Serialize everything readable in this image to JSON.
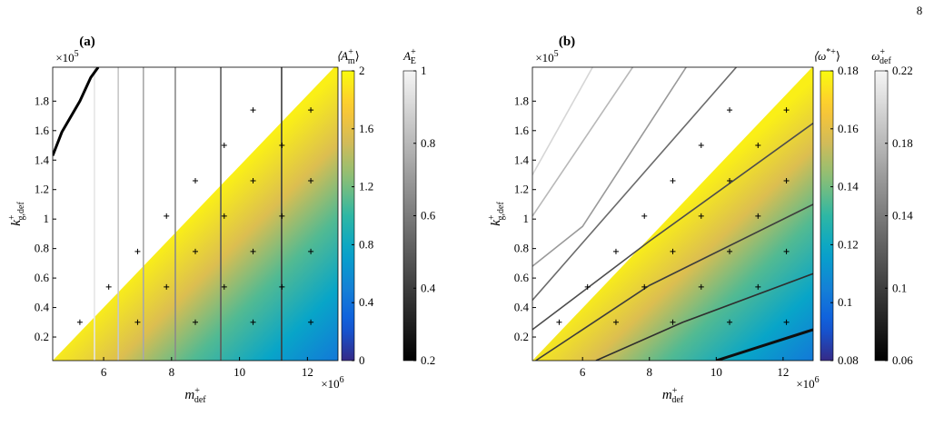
{
  "page_number": "8",
  "chart_data": [
    {
      "type": "contour",
      "panel_label": "(a)",
      "xlabel": {
        "base": "m",
        "sup": "+",
        "sub": "def"
      },
      "ylabel": {
        "base": "k",
        "sup": "+",
        "sub": "g,def"
      },
      "x_multiplier": {
        "base": "×10",
        "sup": "6"
      },
      "y_multiplier": {
        "base": "×10",
        "sup": "5"
      },
      "xlim": [
        4.5,
        12.9
      ],
      "ylim": [
        0.04,
        2.03
      ],
      "xticks": [
        6,
        8,
        10,
        12
      ],
      "yticks": [
        0.2,
        0.4,
        0.6,
        0.8,
        1,
        1.2,
        1.4,
        1.6,
        1.8
      ],
      "boundary": {
        "x": [
          4.5,
          12.79
        ],
        "y": [
          0.04,
          2.03
        ]
      },
      "points": {
        "x": [
          5.3,
          7.0,
          8.7,
          10.4,
          12.1,
          6.15,
          7.85,
          9.55,
          11.25,
          7.0,
          8.7,
          10.4,
          12.1,
          7.85,
          9.55,
          11.25,
          8.7,
          10.4,
          12.1,
          9.55,
          11.25,
          10.4,
          12.1
        ],
        "y": [
          0.3,
          0.3,
          0.3,
          0.3,
          0.3,
          0.54,
          0.54,
          0.54,
          0.54,
          0.78,
          0.78,
          0.78,
          0.78,
          1.02,
          1.02,
          1.02,
          1.26,
          1.26,
          1.26,
          1.5,
          1.5,
          1.74,
          1.74
        ]
      },
      "field_colorbar": {
        "title": {
          "base": "⟨A",
          "sup": "+",
          "sub": "m",
          "end": "⟩"
        },
        "colormap": "parula",
        "lim": [
          0,
          2
        ],
        "ticks": [
          0,
          0.4,
          0.8,
          1.2,
          1.6,
          2
        ]
      },
      "line_colorbar": {
        "title": {
          "base": "A",
          "sup": "+",
          "sub": "E"
        },
        "colormap": "gray",
        "lim": [
          0.2,
          1
        ],
        "ticks": [
          0.2,
          0.4,
          0.6,
          0.8,
          1
        ]
      },
      "contours": [
        {
          "level": 0.95,
          "x": [
            5.73,
            5.73
          ],
          "y": [
            0.04,
            2.03
          ]
        },
        {
          "level": 0.85,
          "x": [
            6.43,
            6.43
          ],
          "y": [
            0.04,
            2.03
          ]
        },
        {
          "level": 0.75,
          "x": [
            7.17,
            7.17
          ],
          "y": [
            0.04,
            2.03
          ]
        },
        {
          "level": 0.65,
          "x": [
            8.11,
            8.11
          ],
          "y": [
            0.04,
            2.03
          ]
        },
        {
          "level": 0.5,
          "x": [
            9.45,
            9.45
          ],
          "y": [
            0.04,
            2.03
          ]
        },
        {
          "level": 0.4,
          "x": [
            11.24,
            11.24
          ],
          "y": [
            0.04,
            2.03
          ]
        },
        {
          "level": 0.2,
          "x": [
            4.5,
            4.77,
            5.3,
            5.62,
            5.84
          ],
          "y": [
            1.43,
            1.59,
            1.8,
            1.96,
            2.03
          ]
        }
      ]
    },
    {
      "type": "contour",
      "panel_label": "(b)",
      "xlabel": {
        "base": "m",
        "sup": "+",
        "sub": "def"
      },
      "ylabel": {
        "base": "k",
        "sup": "+",
        "sub": "g,def"
      },
      "x_multiplier": {
        "base": "×10",
        "sup": "6"
      },
      "y_multiplier": {
        "base": "×10",
        "sup": "5"
      },
      "xlim": [
        4.5,
        12.9
      ],
      "ylim": [
        0.04,
        2.03
      ],
      "xticks": [
        6,
        8,
        10,
        12
      ],
      "yticks": [
        0.2,
        0.4,
        0.6,
        0.8,
        1,
        1.2,
        1.4,
        1.6,
        1.8
      ],
      "boundary": {
        "x": [
          4.5,
          12.87
        ],
        "y": [
          0.04,
          2.03
        ]
      },
      "points": {
        "x": [
          5.3,
          7.0,
          8.7,
          10.4,
          12.1,
          6.15,
          7.85,
          9.55,
          11.25,
          7.0,
          8.7,
          10.4,
          12.1,
          7.85,
          9.55,
          11.25,
          8.7,
          10.4,
          12.1,
          9.55,
          11.25,
          10.4,
          12.1
        ],
        "y": [
          0.3,
          0.3,
          0.3,
          0.3,
          0.3,
          0.54,
          0.54,
          0.54,
          0.54,
          0.78,
          0.78,
          0.78,
          0.78,
          1.02,
          1.02,
          1.02,
          1.26,
          1.26,
          1.26,
          1.5,
          1.5,
          1.74,
          1.74
        ]
      },
      "field_colorbar": {
        "title": {
          "base": "⟨ω",
          "sup": "*+",
          "end": "⟩"
        },
        "colormap": "parula",
        "lim": [
          0.08,
          0.18
        ],
        "ticks": [
          0.08,
          0.1,
          0.12,
          0.14,
          0.16,
          0.18
        ]
      },
      "line_colorbar": {
        "title": {
          "base": "ω",
          "sup": "+",
          "sub": "def"
        },
        "colormap": "gray",
        "lim": [
          0.06,
          0.22
        ],
        "ticks": [
          0.06,
          0.1,
          0.14,
          0.18,
          0.22
        ]
      },
      "contours": [
        {
          "level": 0.2,
          "x": [
            4.5,
            6.3
          ],
          "y": [
            1.3,
            2.03
          ]
        },
        {
          "level": 0.18,
          "x": [
            4.5,
            7.5
          ],
          "y": [
            1.02,
            2.03
          ]
        },
        {
          "level": 0.16,
          "x": [
            4.5,
            6.0,
            9.1
          ],
          "y": [
            0.68,
            0.95,
            2.03
          ]
        },
        {
          "level": 0.13,
          "x": [
            4.5,
            10.6
          ],
          "y": [
            0.45,
            2.03
          ]
        },
        {
          "level": 0.11,
          "x": [
            4.5,
            8.0,
            12.9
          ],
          "y": [
            0.25,
            0.85,
            1.65
          ]
        },
        {
          "level": 0.1,
          "x": [
            4.6,
            8.0,
            12.9
          ],
          "y": [
            0.04,
            0.55,
            1.1
          ]
        },
        {
          "level": 0.09,
          "x": [
            6.4,
            9.0,
            12.9
          ],
          "y": [
            0.04,
            0.3,
            0.63
          ]
        },
        {
          "level": 0.07,
          "x": [
            10.0,
            12.9
          ],
          "y": [
            0.04,
            0.25
          ]
        }
      ]
    }
  ]
}
